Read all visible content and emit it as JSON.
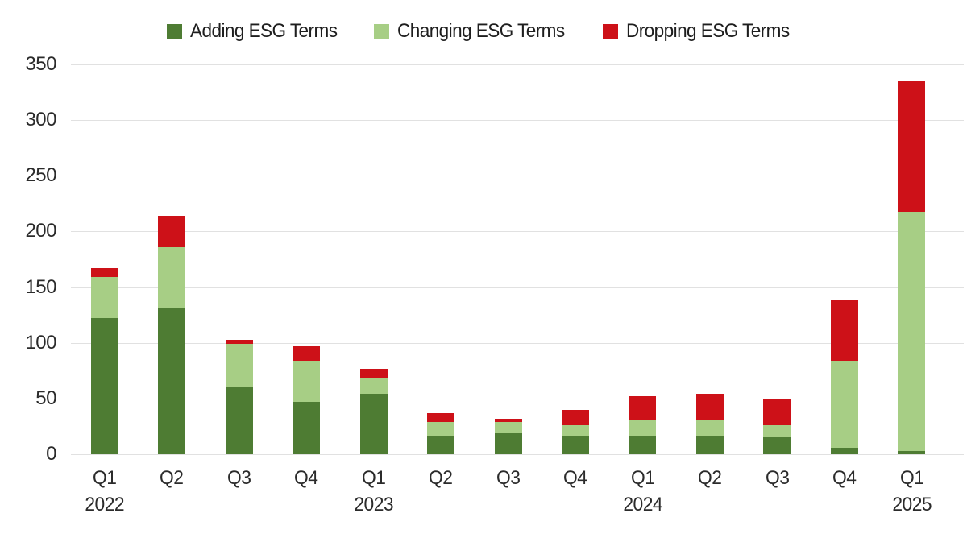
{
  "legend": {
    "items": [
      {
        "key": "adding",
        "label": "Adding ESG Terms",
        "color": "#4e7c33"
      },
      {
        "key": "changing",
        "label": "Changing ESG Terms",
        "color": "#a7ce85"
      },
      {
        "key": "dropping",
        "label": "Dropping ESG Terms",
        "color": "#cd1118"
      }
    ]
  },
  "colors": {
    "adding": "#4e7c33",
    "changing": "#a7ce85",
    "dropping": "#cd1118",
    "gridline": "#e1e1e1",
    "axis_text": "#2b2b2b"
  },
  "chart_data": {
    "type": "bar",
    "stacked": true,
    "title": "",
    "xlabel": "",
    "ylabel": "",
    "categories": [
      "Q1 2022",
      "Q2 2022",
      "Q3 2022",
      "Q4 2022",
      "Q1 2023",
      "Q2 2023",
      "Q3 2023",
      "Q4 2023",
      "Q1 2024",
      "Q2 2024",
      "Q3 2024",
      "Q4 2024",
      "Q1 2025"
    ],
    "x_tick_labels": [
      {
        "quarter": "Q1",
        "year": "2022"
      },
      {
        "quarter": "Q2",
        "year": ""
      },
      {
        "quarter": "Q3",
        "year": ""
      },
      {
        "quarter": "Q4",
        "year": ""
      },
      {
        "quarter": "Q1",
        "year": "2023"
      },
      {
        "quarter": "Q2",
        "year": ""
      },
      {
        "quarter": "Q3",
        "year": ""
      },
      {
        "quarter": "Q4",
        "year": ""
      },
      {
        "quarter": "Q1",
        "year": "2024"
      },
      {
        "quarter": "Q2",
        "year": ""
      },
      {
        "quarter": "Q3",
        "year": ""
      },
      {
        "quarter": "Q4",
        "year": ""
      },
      {
        "quarter": "Q1",
        "year": "2025"
      }
    ],
    "series": [
      {
        "name": "Adding ESG Terms",
        "color": "#4e7c33",
        "values": [
          122,
          131,
          61,
          47,
          54,
          16,
          19,
          16,
          16,
          16,
          15,
          6,
          3
        ]
      },
      {
        "name": "Changing ESG Terms",
        "color": "#a7ce85",
        "values": [
          37,
          55,
          38,
          37,
          14,
          13,
          10,
          10,
          15,
          15,
          11,
          78,
          215
        ]
      },
      {
        "name": "Dropping ESG Terms",
        "color": "#cd1118",
        "values": [
          8,
          28,
          4,
          13,
          9,
          8,
          3,
          14,
          21,
          23,
          23,
          55,
          117
        ]
      }
    ],
    "totals": [
      167,
      214,
      103,
      97,
      77,
      37,
      32,
      40,
      52,
      54,
      49,
      139,
      335
    ],
    "ylim": [
      0,
      350
    ],
    "y_ticks": [
      0,
      50,
      100,
      150,
      200,
      250,
      300,
      350
    ],
    "grid": "horizontal",
    "legend_position": "top"
  }
}
